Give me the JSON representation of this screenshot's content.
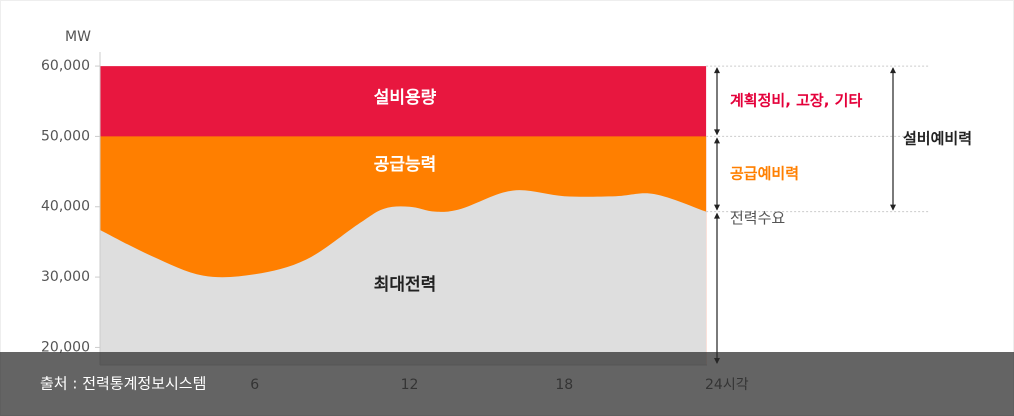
{
  "chart_data": {
    "type": "area",
    "y_unit": "MW",
    "x": [
      0,
      2,
      4,
      6,
      8,
      10,
      11,
      12,
      13,
      14,
      16,
      18,
      20,
      21.5,
      23.5
    ],
    "xlim": [
      0,
      24
    ],
    "xticks": [
      6,
      12,
      18,
      {
        "value": 24,
        "label": "24시각"
      }
    ],
    "ylim": [
      17500,
      62000
    ],
    "yticks": [
      {
        "value": 20000,
        "label": "20,000"
      },
      {
        "value": 30000,
        "label": "30,000"
      },
      {
        "value": 40000,
        "label": "40,000"
      },
      {
        "value": 50000,
        "label": "50,000"
      },
      {
        "value": 60000,
        "label": "60,000"
      }
    ],
    "series": [
      {
        "name": "설비용량",
        "color": "#e8173f",
        "values": [
          60000,
          60000,
          60000,
          60000,
          60000,
          60000,
          60000,
          60000,
          60000,
          60000,
          60000,
          60000,
          60000,
          60000,
          60000
        ]
      },
      {
        "name": "공급능력",
        "color": "#ff7f00",
        "values": [
          50000,
          50000,
          50000,
          50000,
          50000,
          50000,
          50000,
          50000,
          50000,
          50000,
          50000,
          50000,
          50000,
          50000,
          50000
        ]
      },
      {
        "name": "최대전력",
        "color": "#dedede",
        "values": [
          36700,
          33000,
          30200,
          30400,
          32500,
          37500,
          39700,
          40000,
          39300,
          39700,
          42300,
          41500,
          41500,
          41800,
          39300
        ]
      }
    ],
    "annotations": [
      {
        "text": "계획정비, 고장, 기타",
        "color": "#e4003a"
      },
      {
        "text": "공급예비력",
        "color": "#ff7f00"
      },
      {
        "text": "전력수요",
        "color": "#555555"
      },
      {
        "text": "설비예비력",
        "color": "#222222"
      }
    ]
  },
  "caption": "출처 : 전력통계정보시스템"
}
